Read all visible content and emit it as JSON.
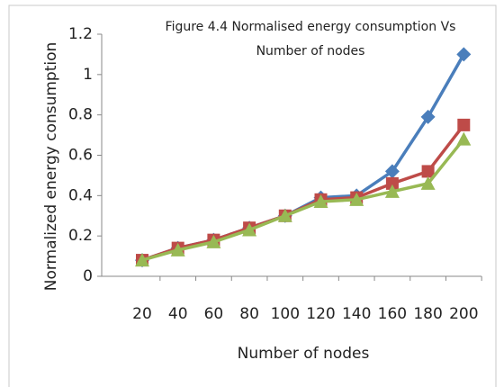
{
  "chart_data": {
    "type": "line",
    "title": [
      "Figure 4.4 Normalised  energy consumption  Vs",
      "Number of nodes"
    ],
    "x_label": "Number of nodes",
    "y_label": "Normalized energy consumption",
    "categories": [
      20,
      40,
      60,
      80,
      100,
      120,
      140,
      160,
      180,
      200
    ],
    "series": [
      {
        "color": "#4a7ebb",
        "marker": "diamond",
        "values": [
          0.08,
          0.14,
          0.18,
          0.24,
          0.3,
          0.39,
          0.4,
          0.52,
          0.79,
          1.1
        ]
      },
      {
        "color": "#be4b48",
        "marker": "square",
        "values": [
          0.08,
          0.14,
          0.18,
          0.24,
          0.3,
          0.38,
          0.39,
          0.46,
          0.52,
          0.75
        ]
      },
      {
        "color": "#98b954",
        "marker": "triangle",
        "values": [
          0.08,
          0.13,
          0.17,
          0.23,
          0.3,
          0.37,
          0.38,
          0.42,
          0.46,
          0.68
        ]
      }
    ],
    "ylim": [
      0,
      1.2
    ],
    "yticks": [
      0,
      0.2,
      0.4,
      0.6,
      0.8,
      1,
      1.2
    ],
    "grid": false
  }
}
